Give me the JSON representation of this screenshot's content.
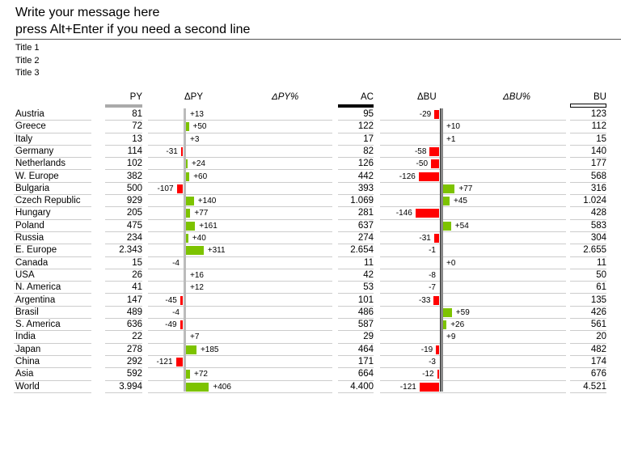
{
  "header": {
    "message_line1": "Write your message here",
    "message_line2": "press Alt+Enter if you need a second line"
  },
  "titles": [
    "Title 1",
    "Title 2",
    "Title 3"
  ],
  "columns": {
    "py": "PY",
    "dpy": "ΔPY",
    "dpy_pct": "ΔPY%",
    "ac": "AC",
    "dbu": "ΔBU",
    "dbu_pct": "ΔBU%",
    "bu": "BU"
  },
  "colors": {
    "positive": "#7dc300",
    "negative": "#ff0000",
    "axis": "#bbbbbb"
  },
  "chart_data": {
    "type": "table",
    "categories": [
      "Austria",
      "Greece",
      "Italy",
      "Germany",
      "Netherlands",
      "W. Europe",
      "Bulgaria",
      "Czech Republic",
      "Hungary",
      "Poland",
      "Russia",
      "E. Europe",
      "Canada",
      "USA",
      "N. America",
      "Argentina",
      "Brasil",
      "S. America",
      "India",
      "Japan",
      "China",
      "Asia",
      "World"
    ],
    "series": [
      {
        "name": "PY",
        "values": [
          "81",
          "72",
          "13",
          "114",
          "102",
          "382",
          "500",
          "929",
          "205",
          "475",
          "234",
          "2.343",
          "15",
          "26",
          "41",
          "147",
          "489",
          "636",
          "22",
          "278",
          "292",
          "592",
          "3.994"
        ]
      },
      {
        "name": "ΔPY",
        "values": [
          "+13",
          "+50",
          "+3",
          "-31",
          "+24",
          "+60",
          "-107",
          "+140",
          "+77",
          "+161",
          "+40",
          "+311",
          "-4",
          "+16",
          "+12",
          "-45",
          "-4",
          "-49",
          "+7",
          "+185",
          "-121",
          "+72",
          "+406"
        ]
      },
      {
        "name": "AC",
        "values": [
          "95",
          "122",
          "17",
          "82",
          "126",
          "442",
          "393",
          "1.069",
          "281",
          "637",
          "274",
          "2.654",
          "11",
          "42",
          "53",
          "101",
          "486",
          "587",
          "29",
          "464",
          "171",
          "664",
          "4.400"
        ]
      },
      {
        "name": "ΔBU",
        "values": [
          "-29",
          "+10",
          "+1",
          "-58",
          "-50",
          "-126",
          "+77",
          "+45",
          "-146",
          "+54",
          "-31",
          "-1",
          "+0",
          "-8",
          "-7",
          "-33",
          "+59",
          "+26",
          "+9",
          "-19",
          "-3",
          "-12",
          "-121"
        ]
      },
      {
        "name": "BU",
        "values": [
          "123",
          "112",
          "15",
          "140",
          "177",
          "568",
          "316",
          "1.024",
          "428",
          "583",
          "304",
          "2.655",
          "11",
          "50",
          "61",
          "135",
          "426",
          "561",
          "20",
          "482",
          "174",
          "676",
          "4.521"
        ]
      }
    ],
    "bar_flags": {
      "dpy": [
        0,
        1,
        0,
        1,
        1,
        1,
        1,
        1,
        1,
        1,
        1,
        1,
        0,
        0,
        0,
        1,
        0,
        1,
        0,
        1,
        1,
        1,
        1
      ],
      "dbu": [
        1,
        0,
        0,
        1,
        1,
        1,
        1,
        1,
        1,
        1,
        1,
        0,
        0,
        0,
        0,
        1,
        1,
        1,
        0,
        1,
        0,
        1,
        1
      ]
    }
  }
}
